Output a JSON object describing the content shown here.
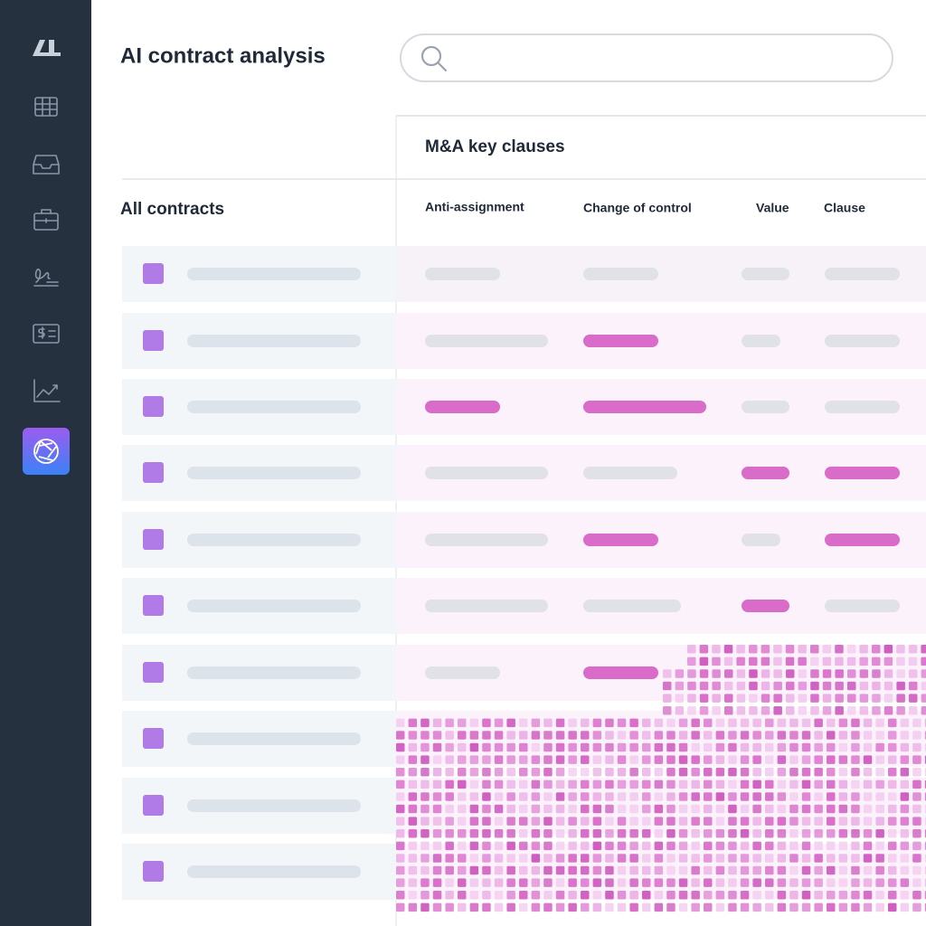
{
  "header": {
    "title": "AI contract analysis"
  },
  "panel": {
    "title": "M&A key clauses"
  },
  "list": {
    "title": "All contracts"
  },
  "table": {
    "columns": [
      "Anti-assignment",
      "Change of control",
      "Value",
      "Clause"
    ]
  }
}
